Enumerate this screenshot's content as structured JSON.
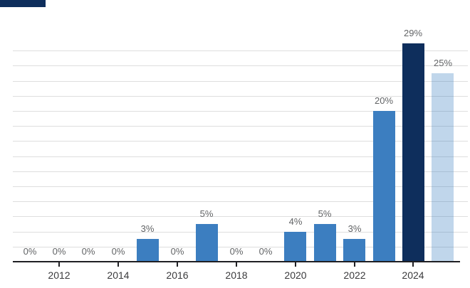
{
  "legend": {
    "swatch_color": "#0e2e5c"
  },
  "chart_data": {
    "type": "bar",
    "title": "",
    "xlabel": "",
    "ylabel": "",
    "x": [
      2011,
      2012,
      2013,
      2014,
      2015,
      2016,
      2017,
      2018,
      2019,
      2020,
      2021,
      2022,
      2023,
      2024,
      2025
    ],
    "values": [
      0,
      0,
      0,
      0,
      3,
      0,
      5,
      0,
      0,
      4,
      5,
      3,
      20,
      29,
      25
    ],
    "bar_value_labels": [
      "0%",
      "0%",
      "0%",
      "0%",
      "3%",
      "0%",
      "5%",
      "0%",
      "0%",
      "4%",
      "5%",
      "3%",
      "20%",
      "29%",
      "25%"
    ],
    "xtick_labels": [
      "2012",
      "2014",
      "2016",
      "2018",
      "2020",
      "2022",
      "2024"
    ],
    "xticks": [
      2012,
      2014,
      2016,
      2018,
      2020,
      2022,
      2024
    ],
    "ylim": [
      0,
      30
    ],
    "gridline_step_pct": 2,
    "grid": true,
    "legend_position": "none",
    "colors": {
      "bar_default": "#3c7ec0",
      "bar_2024": "#0e2e5c",
      "bar_2025": "rgba(60, 126, 192, 0.32)",
      "gridline": "#dedede",
      "axis_line": "#1f1f23",
      "value_label_text": "#626466",
      "year_label_text": "#3a3a3c"
    }
  }
}
